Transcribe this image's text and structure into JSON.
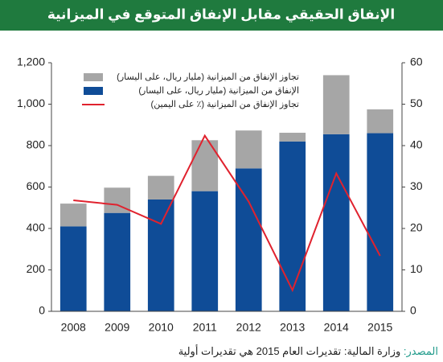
{
  "chart_data": {
    "type": "bar",
    "title": "الإنفاق الحقيقي مقابل الإنفاق المتوقع في الميزانية",
    "categories": [
      "2008",
      "2009",
      "2010",
      "2011",
      "2012",
      "2013",
      "2014",
      "2015"
    ],
    "series": [
      {
        "name": "الإنفاق من الميزانية (مليار ريال، على اليسار)",
        "color": "#0f4c97",
        "stack": true,
        "values": [
          410,
          475,
          540,
          580,
          690,
          820,
          855,
          860
        ]
      },
      {
        "name": "تجاوز الإنفاق من الميزانية (مليار ريال، على اليسار)",
        "color": "#a6a6a6",
        "stack": true,
        "values": [
          110,
          122,
          114,
          246,
          183,
          42,
          285,
          115
        ]
      },
      {
        "name": "تجاوز الإنفاق من الميزانية (٪ على اليمين)",
        "color": "#e0222e",
        "type": "line",
        "axis": "y2",
        "values": [
          26.8,
          25.7,
          21.1,
          42.4,
          26.5,
          5.1,
          33.3,
          13.4
        ]
      }
    ],
    "legend_order": [
      1,
      0,
      2
    ],
    "ylim": [
      0,
      1200
    ],
    "yticks": [
      0,
      200,
      400,
      600,
      800,
      {
        "value": 1000,
        "label": "1,000"
      },
      {
        "value": 1200,
        "label": "1,200"
      }
    ],
    "y2lim": [
      0,
      60
    ],
    "y2ticks": [
      0,
      10,
      20,
      30,
      40,
      50,
      60
    ],
    "source_label": "المصدر:",
    "source": "وزارة المالية: تقديرات العام 2015 هي تقديرات أولية"
  }
}
